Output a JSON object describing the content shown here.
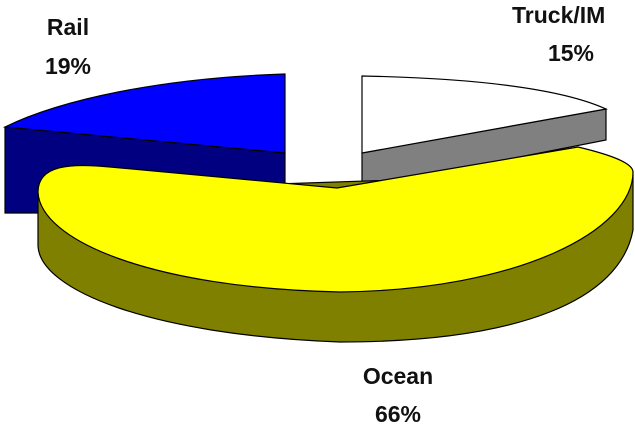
{
  "chart_data": {
    "type": "pie",
    "style": "3d-exploded",
    "title": "",
    "slices": [
      {
        "label": "Rail",
        "percent_label": "19%",
        "value": 19,
        "top_color": "#0000ff",
        "side_color": "#000080"
      },
      {
        "label": "Truck/IM",
        "percent_label": "15%",
        "value": 15,
        "top_color": "#ffffff",
        "side_color": "#808080"
      },
      {
        "label": "Ocean",
        "percent_label": "66%",
        "value": 66,
        "top_color": "#ffff00",
        "side_color": "#808000"
      }
    ],
    "legend": "none"
  }
}
